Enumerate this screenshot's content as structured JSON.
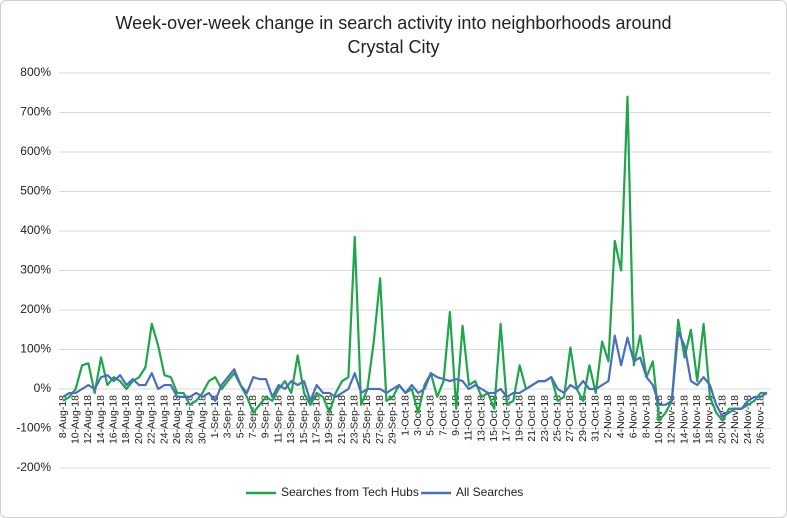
{
  "chart_data": {
    "type": "line",
    "title": "Week-over-week change in search activity into neighborhoods around Crystal City",
    "categories": [
      "8-Aug-18",
      null,
      "10-Aug-18",
      null,
      "12-Aug-18",
      null,
      "14-Aug-18",
      null,
      "16-Aug-18",
      null,
      "18-Aug-18",
      null,
      "20-Aug-18",
      null,
      "22-Aug-18",
      null,
      "24-Aug-18",
      null,
      "26-Aug-18",
      null,
      "28-Aug-18",
      null,
      "30-Aug-18",
      null,
      "1-Sep-18",
      null,
      "3-Sep-18",
      null,
      "5-Sep-18",
      null,
      "7-Sep-18",
      null,
      "9-Sep-18",
      null,
      "11-Sep-18",
      null,
      "13-Sep-18",
      null,
      "15-Sep-18",
      null,
      "17-Sep-18",
      null,
      "19-Sep-18",
      null,
      "21-Sep-18",
      null,
      "23-Sep-18",
      null,
      "25-Sep-18",
      null,
      "27-Sep-18",
      null,
      "29-Sep-18",
      null,
      "1-Oct-18",
      null,
      "3-Oct-18",
      null,
      "5-Oct-18",
      null,
      "7-Oct-18",
      null,
      "9-Oct-18",
      null,
      "11-Oct-18",
      null,
      "13-Oct-18",
      null,
      "15-Oct-18",
      null,
      "17-Oct-18",
      null,
      "19-Oct-18",
      null,
      "21-Oct-18",
      null,
      "23-Oct-18",
      null,
      "25-Oct-18",
      null,
      "27-Oct-18",
      null,
      "29-Oct-18",
      null,
      "31-Oct-18",
      null,
      "2-Nov-18",
      null,
      "4-Nov-18",
      null,
      "6-Nov-18",
      null,
      "8-Nov-18",
      null,
      "10-Nov-18",
      null,
      "12-Nov-18",
      null,
      "14-Nov-18",
      null,
      "16-Nov-18",
      null,
      "18-Nov-18",
      null,
      "20-Nov-18",
      null,
      "22-Nov-18",
      null,
      "24-Nov-18",
      null,
      "26-Nov-18",
      null
    ],
    "series": [
      {
        "name": "Searches from Tech Hubs",
        "color": "#1fa64a",
        "values": [
          -30,
          -20,
          0,
          60,
          65,
          -10,
          80,
          10,
          30,
          20,
          0,
          20,
          30,
          55,
          165,
          110,
          35,
          30,
          -10,
          -10,
          -40,
          -30,
          -10,
          20,
          30,
          0,
          20,
          40,
          10,
          -20,
          -60,
          -40,
          -20,
          -30,
          0,
          20,
          -10,
          85,
          -10,
          -40,
          -10,
          -20,
          -60,
          -10,
          20,
          30,
          385,
          -40,
          0,
          120,
          280,
          -30,
          -20,
          10,
          -10,
          0,
          -60,
          10,
          40,
          -20,
          20,
          195,
          -50,
          160,
          10,
          20,
          -20,
          -10,
          -50,
          165,
          -40,
          -30,
          60,
          0,
          10,
          20,
          20,
          30,
          -30,
          -20,
          105,
          0,
          -30,
          60,
          -10,
          120,
          70,
          375,
          300,
          740,
          60,
          135,
          30,
          70,
          -80,
          -60,
          -30,
          175,
          80,
          150,
          20,
          165,
          -20,
          -60,
          -80,
          -50,
          -50,
          -50,
          -40,
          -30,
          -10,
          -10
        ]
      },
      {
        "name": "All Searches",
        "color": "#4a6fc0",
        "values": [
          -20,
          -10,
          -10,
          0,
          10,
          0,
          30,
          35,
          20,
          35,
          10,
          25,
          10,
          10,
          40,
          0,
          10,
          10,
          -20,
          -20,
          -20,
          -10,
          -20,
          -10,
          -30,
          10,
          30,
          50,
          10,
          -10,
          30,
          25,
          25,
          -20,
          10,
          0,
          20,
          10,
          20,
          -30,
          10,
          -10,
          -10,
          -20,
          -10,
          0,
          40,
          -10,
          0,
          0,
          0,
          -10,
          0,
          10,
          -10,
          10,
          -10,
          0,
          40,
          30,
          25,
          20,
          25,
          20,
          0,
          10,
          0,
          -10,
          -10,
          0,
          -20,
          -10,
          -10,
          0,
          10,
          20,
          20,
          30,
          0,
          -10,
          10,
          0,
          20,
          0,
          0,
          10,
          20,
          135,
          60,
          130,
          70,
          80,
          30,
          10,
          -40,
          -40,
          -30,
          145,
          110,
          20,
          10,
          30,
          10,
          -40,
          -70,
          -60,
          -50,
          -50,
          -30,
          -20,
          -20,
          -10
        ]
      }
    ],
    "ylim": [
      -200,
      800
    ],
    "yticks": [
      {
        "value": -200,
        "label": "-200%"
      },
      {
        "value": -100,
        "label": "-100%"
      },
      {
        "value": 0,
        "label": "0%"
      },
      {
        "value": 100,
        "label": "100%"
      },
      {
        "value": 200,
        "label": "200%"
      },
      {
        "value": 300,
        "label": "300%"
      },
      {
        "value": 400,
        "label": "400%"
      },
      {
        "value": 500,
        "label": "500%"
      },
      {
        "value": 600,
        "label": "600%"
      },
      {
        "value": 700,
        "label": "700%"
      },
      {
        "value": 800,
        "label": "800%"
      }
    ],
    "grid": true,
    "legend": "bottom"
  }
}
